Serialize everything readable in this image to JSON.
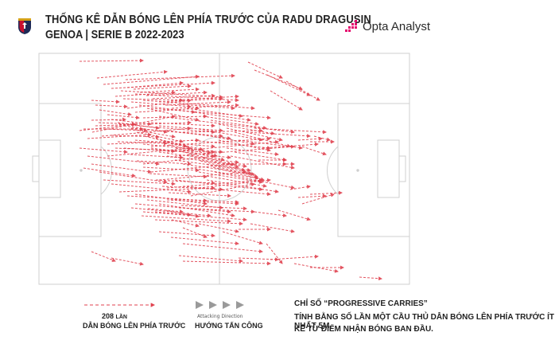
{
  "header": {
    "title": "THỐNG KÊ DẪN BÓNG LÊN PHÍA TRƯỚC CỦA RADU DRAGUSIN",
    "subtitle": "GENOA | SERIE B 2022-2023",
    "brand": "Opta Analyst"
  },
  "legend": {
    "count": "208",
    "count_suffix": "LẦN",
    "carries_label": "DẪN BÓNG LÊN PHÍA TRƯỚC",
    "direction_label_en": "Attacking Direction",
    "direction_label_vi": "HƯỚNG TẤN CÔNG"
  },
  "note": {
    "title": "CHỈ SỐ “PROGRESSIVE CARRIES”",
    "line1": "TÍNH BẰNG SỐ LẦN MỘT CẦU THỦ DẪN BÓNG LÊN PHÍA TRƯỚC ÍT NHẤT 5M,",
    "line2": "KỂ TỪ ĐIỂM NHẬN BÓNG BAN ĐẦU."
  },
  "colors": {
    "arrow": "#e0424f",
    "pitch_line": "#cfcfcf",
    "genoa_red": "#c8102e",
    "genoa_blue": "#1d2a57",
    "opta_pink": "#e5006d"
  }
}
